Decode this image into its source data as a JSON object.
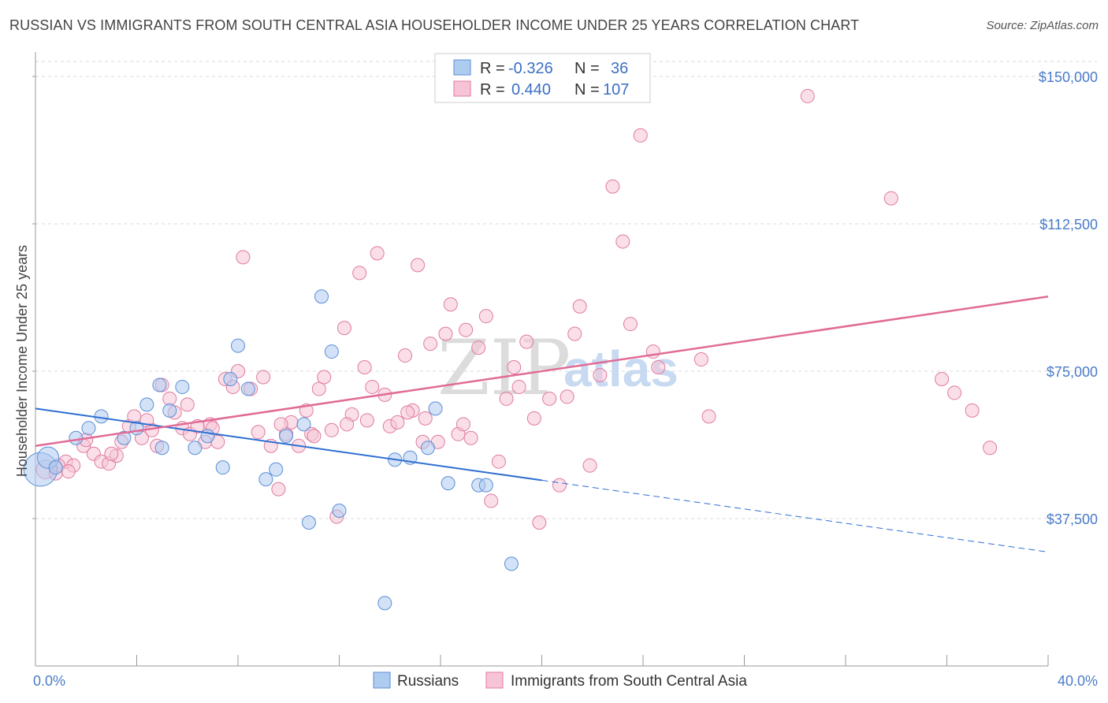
{
  "title": "RUSSIAN VS IMMIGRANTS FROM SOUTH CENTRAL ASIA HOUSEHOLDER INCOME UNDER 25 YEARS CORRELATION CHART",
  "source": "Source: ZipAtlas.com",
  "watermark": {
    "part1": "ZIP",
    "part2": "atlas"
  },
  "colors": {
    "russians": "#5b8fd6",
    "russians_fill": "#aecbf0",
    "immigrants": "#e07aa0",
    "immigrants_fill": "#f6c4d6",
    "trend_blue": "#2e6fd1",
    "trend_pink": "#e06b96",
    "tick_label": "#4a7cc9",
    "grid": "#d9d9d9"
  },
  "legend": {
    "rows": [
      {
        "r_label": "R =",
        "r_value": "-0.326",
        "n_label": "N =",
        "n_value": "36"
      },
      {
        "r_label": "R =",
        "r_value": "0.440",
        "n_label": "N =",
        "n_value": "107"
      }
    ]
  },
  "chart_data": {
    "type": "scatter",
    "title": "RUSSIAN VS IMMIGRANTS FROM SOUTH CENTRAL ASIA HOUSEHOLDER INCOME UNDER 25 YEARS CORRELATION CHART",
    "xlabel": "",
    "ylabel": "Householder Income Under 25 years",
    "xlim": [
      0,
      40
    ],
    "ylim": [
      0,
      150000
    ],
    "x_tick_labels": [
      "0.0%",
      "40.0%"
    ],
    "y_ticks": [
      37500,
      75000,
      112500,
      150000
    ],
    "y_tick_labels": [
      "$37,500",
      "$75,000",
      "$112,500",
      "$150,000"
    ],
    "grid": true,
    "legend_position": "top-center",
    "series": [
      {
        "name": "Russians",
        "r": -0.326,
        "n": 36,
        "trend": {
          "x0": 0,
          "y0": 65500,
          "x1": 40,
          "y1": 29000,
          "solid_until_x": 20
        },
        "points": [
          [
            0.2,
            50000,
            2.5
          ],
          [
            0.5,
            53000,
            1.6
          ],
          [
            0.8,
            50500,
            1
          ],
          [
            1.6,
            58000,
            1
          ],
          [
            2.1,
            60500,
            1
          ],
          [
            2.6,
            63500,
            1
          ],
          [
            3.5,
            58000,
            1
          ],
          [
            4.0,
            60500,
            1
          ],
          [
            4.4,
            66500,
            1
          ],
          [
            4.9,
            71500,
            1
          ],
          [
            5.3,
            65000,
            1
          ],
          [
            5.8,
            71000,
            1
          ],
          [
            6.3,
            55500,
            1
          ],
          [
            6.8,
            58500,
            1
          ],
          [
            7.4,
            50500,
            1
          ],
          [
            7.7,
            73000,
            1
          ],
          [
            8.0,
            81500,
            1
          ],
          [
            8.4,
            70500,
            1
          ],
          [
            9.1,
            47500,
            1
          ],
          [
            9.5,
            50000,
            1
          ],
          [
            9.9,
            58500,
            1
          ],
          [
            10.6,
            61500,
            1
          ],
          [
            10.8,
            36500,
            1
          ],
          [
            11.3,
            94000,
            1
          ],
          [
            11.7,
            80000,
            1
          ],
          [
            12.0,
            39500,
            1
          ],
          [
            14.2,
            52500,
            1
          ],
          [
            14.8,
            53000,
            1
          ],
          [
            13.8,
            16000,
            1
          ],
          [
            15.5,
            55500,
            1
          ],
          [
            15.8,
            65500,
            1
          ],
          [
            16.3,
            46500,
            1
          ],
          [
            17.5,
            46000,
            1
          ],
          [
            17.8,
            46000,
            1
          ],
          [
            18.8,
            26000,
            1
          ],
          [
            5.0,
            55500,
            1
          ]
        ]
      },
      {
        "name": "Immigrants from South Central Asia",
        "r": 0.44,
        "n": 107,
        "trend": {
          "x0": 0,
          "y0": 56000,
          "x1": 40,
          "y1": 94000
        },
        "points": [
          [
            0.4,
            50000,
            1.4
          ],
          [
            0.8,
            49000,
            1
          ],
          [
            1.2,
            52000,
            1
          ],
          [
            1.5,
            51000,
            1
          ],
          [
            1.9,
            56000,
            1
          ],
          [
            2.3,
            54000,
            1
          ],
          [
            2.6,
            52000,
            1
          ],
          [
            2.9,
            51500,
            1
          ],
          [
            3.2,
            53500,
            1
          ],
          [
            3.4,
            57000,
            1
          ],
          [
            3.7,
            61000,
            1
          ],
          [
            3.9,
            63500,
            1
          ],
          [
            4.2,
            58000,
            1
          ],
          [
            4.6,
            60000,
            1
          ],
          [
            4.8,
            56000,
            1
          ],
          [
            5.0,
            71500,
            1
          ],
          [
            5.3,
            68000,
            1
          ],
          [
            5.5,
            64500,
            1
          ],
          [
            5.8,
            60500,
            1
          ],
          [
            6.1,
            59000,
            1
          ],
          [
            6.4,
            61000,
            1
          ],
          [
            6.7,
            57000,
            1
          ],
          [
            6.9,
            61500,
            1
          ],
          [
            7.2,
            57000,
            1
          ],
          [
            7.5,
            73000,
            1
          ],
          [
            7.8,
            71000,
            1
          ],
          [
            8.0,
            75000,
            1
          ],
          [
            8.2,
            104000,
            1
          ],
          [
            8.5,
            70500,
            1
          ],
          [
            8.8,
            59500,
            1
          ],
          [
            9.0,
            73500,
            1
          ],
          [
            9.3,
            56000,
            1
          ],
          [
            9.6,
            45000,
            1
          ],
          [
            9.9,
            59000,
            1
          ],
          [
            10.1,
            62000,
            1
          ],
          [
            10.4,
            56000,
            1
          ],
          [
            10.7,
            65000,
            1
          ],
          [
            10.9,
            59000,
            1
          ],
          [
            11.2,
            70500,
            1
          ],
          [
            11.4,
            73500,
            1
          ],
          [
            11.7,
            60000,
            1
          ],
          [
            11.9,
            38000,
            1
          ],
          [
            12.2,
            86000,
            1
          ],
          [
            12.5,
            64000,
            1
          ],
          [
            12.8,
            100000,
            1
          ],
          [
            13.0,
            76000,
            1
          ],
          [
            13.3,
            71000,
            1
          ],
          [
            13.5,
            105000,
            1
          ],
          [
            13.8,
            69000,
            1
          ],
          [
            14.0,
            61000,
            1
          ],
          [
            14.3,
            62000,
            1
          ],
          [
            14.6,
            79000,
            1
          ],
          [
            14.9,
            65000,
            1
          ],
          [
            15.1,
            102000,
            1
          ],
          [
            15.4,
            63000,
            1
          ],
          [
            15.6,
            82000,
            1
          ],
          [
            15.9,
            57000,
            1
          ],
          [
            16.2,
            84500,
            1
          ],
          [
            16.4,
            92000,
            1
          ],
          [
            16.7,
            59000,
            1
          ],
          [
            17.0,
            85500,
            1
          ],
          [
            17.2,
            58000,
            1
          ],
          [
            17.5,
            81000,
            1
          ],
          [
            17.8,
            89000,
            1
          ],
          [
            18.0,
            42000,
            1
          ],
          [
            18.3,
            52000,
            1
          ],
          [
            18.6,
            68000,
            1
          ],
          [
            18.9,
            76000,
            1
          ],
          [
            19.1,
            71000,
            1
          ],
          [
            19.4,
            82500,
            1
          ],
          [
            19.7,
            63000,
            1
          ],
          [
            19.9,
            36500,
            1
          ],
          [
            20.3,
            68000,
            1
          ],
          [
            20.7,
            46000,
            1
          ],
          [
            21.0,
            68500,
            1
          ],
          [
            21.3,
            84500,
            1
          ],
          [
            21.5,
            91500,
            1
          ],
          [
            21.9,
            51000,
            1
          ],
          [
            22.3,
            74000,
            1
          ],
          [
            22.8,
            122000,
            1
          ],
          [
            23.2,
            108000,
            1
          ],
          [
            23.5,
            87000,
            1
          ],
          [
            23.9,
            135000,
            1
          ],
          [
            24.4,
            80000,
            1
          ],
          [
            24.6,
            76000,
            1
          ],
          [
            26.3,
            78000,
            1
          ],
          [
            26.6,
            63500,
            1
          ],
          [
            30.5,
            145000,
            1
          ],
          [
            33.8,
            119000,
            1
          ],
          [
            35.8,
            73000,
            1
          ],
          [
            36.3,
            69500,
            1
          ],
          [
            37.0,
            65000,
            1
          ],
          [
            37.7,
            55500,
            1
          ],
          [
            0.9,
            51000,
            1
          ],
          [
            1.3,
            49500,
            1
          ],
          [
            2.0,
            57500,
            1
          ],
          [
            3.0,
            54000,
            1
          ],
          [
            4.4,
            62500,
            1
          ],
          [
            6.0,
            66500,
            1
          ],
          [
            7.0,
            60500,
            1
          ],
          [
            9.7,
            61500,
            1
          ],
          [
            11.0,
            58500,
            1
          ],
          [
            12.3,
            61500,
            1
          ],
          [
            13.1,
            62500,
            1
          ],
          [
            14.7,
            64500,
            1
          ],
          [
            15.3,
            57000,
            1
          ],
          [
            16.9,
            61500,
            1
          ]
        ]
      }
    ]
  },
  "bottom_legend": {
    "items": [
      {
        "label": "Russians"
      },
      {
        "label": "Immigrants from South Central Asia"
      }
    ]
  }
}
